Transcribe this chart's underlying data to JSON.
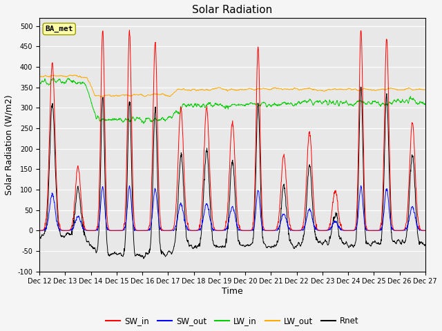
{
  "title": "Solar Radiation",
  "ylabel": "Solar Radiation (W/m2)",
  "xlabel": "Time",
  "ylim": [
    -100,
    520
  ],
  "yticks": [
    -100,
    -50,
    0,
    50,
    100,
    150,
    200,
    250,
    300,
    350,
    400,
    450,
    500
  ],
  "xlim": [
    0,
    360
  ],
  "xtick_positions": [
    0,
    24,
    48,
    72,
    96,
    120,
    144,
    168,
    192,
    216,
    240,
    264,
    288,
    312,
    336,
    360
  ],
  "xtick_labels": [
    "Dec 12",
    "Dec 13",
    "Dec 14",
    "Dec 15",
    "Dec 16",
    "Dec 17",
    "Dec 18",
    "Dec 19",
    "Dec 20",
    "Dec 21",
    "Dec 22",
    "Dec 23",
    "Dec 24",
    "Dec 25",
    "Dec 26",
    "Dec 27"
  ],
  "legend_labels": [
    "SW_in",
    "SW_out",
    "LW_in",
    "LW_out",
    "Rnet"
  ],
  "colors": {
    "SW_in": "#ff0000",
    "SW_out": "#0000ff",
    "LW_in": "#00cc00",
    "LW_out": "#ffaa00",
    "Rnet": "#000000"
  },
  "station_label": "BA_met",
  "bg_color": "#e8e8e8",
  "grid_color": "#ffffff",
  "title_fontsize": 11,
  "label_fontsize": 9,
  "tick_fontsize": 7
}
